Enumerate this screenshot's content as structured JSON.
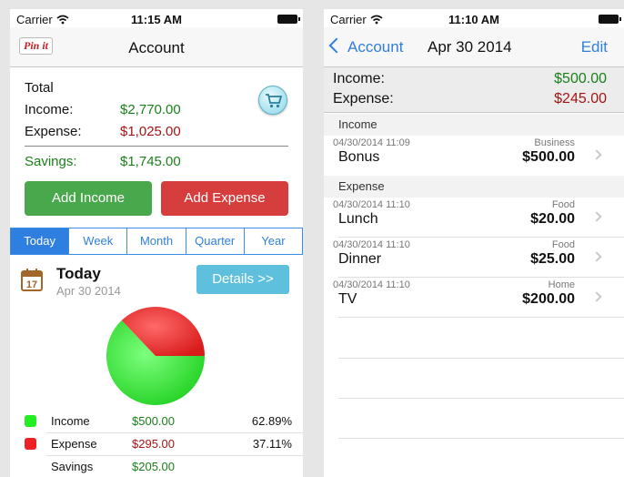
{
  "left": {
    "status": {
      "carrier": "Carrier",
      "time": "11:15 AM"
    },
    "pinit_label": "Pin it",
    "nav_title": "Account",
    "total": {
      "label": "Total",
      "income_label": "Income:",
      "income_value": "$2,770.00",
      "expense_label": "Expense:",
      "expense_value": "$1,025.00",
      "savings_label": "Savings:",
      "savings_value": "$1,745.00"
    },
    "buttons": {
      "add_income": "Add Income",
      "add_expense": "Add Expense"
    },
    "tabs": [
      "Today",
      "Week",
      "Month",
      "Quarter",
      "Year"
    ],
    "active_tab": "Today",
    "period": {
      "calendar_day": "17",
      "title": "Today",
      "date": "Apr 30 2014",
      "details": "Details >>"
    },
    "legend": [
      {
        "name": "Income",
        "value": "$500.00",
        "pct": "62.89%",
        "color": "#22ee22"
      },
      {
        "name": "Expense",
        "value": "$295.00",
        "pct": "37.11%",
        "color": "#ee2222"
      },
      {
        "name": "Savings",
        "value": "$205.00",
        "pct": ""
      }
    ],
    "pie": {
      "income_fraction": 0.6289,
      "expense_fraction": 0.3711
    }
  },
  "right": {
    "status": {
      "carrier": "Carrier",
      "time": "11:10 AM"
    },
    "back_label": "Account",
    "nav_title": "Apr 30 2014",
    "edit_label": "Edit",
    "summary": {
      "income_label": "Income:",
      "income_value": "$500.00",
      "expense_label": "Expense:",
      "expense_value": "$245.00"
    },
    "income_header": "Income",
    "income_entries": [
      {
        "date": "04/30/2014 11:09",
        "name": "Bonus",
        "category": "Business",
        "amount": "$500.00"
      }
    ],
    "expense_header": "Expense",
    "expense_entries": [
      {
        "date": "04/30/2014 11:10",
        "name": "Lunch",
        "category": "Food",
        "amount": "$20.00"
      },
      {
        "date": "04/30/2014 11:10",
        "name": "Dinner",
        "category": "Food",
        "amount": "$25.00"
      },
      {
        "date": "04/30/2014 11:10",
        "name": "TV",
        "category": "Home",
        "amount": "$200.00"
      }
    ]
  }
}
